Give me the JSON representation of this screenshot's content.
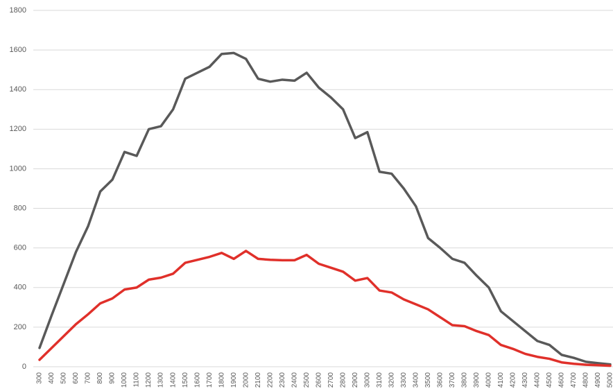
{
  "chart_data": {
    "type": "line",
    "categories": [
      300,
      400,
      500,
      600,
      700,
      800,
      900,
      1000,
      1100,
      1200,
      1300,
      1400,
      1500,
      1600,
      1700,
      1800,
      1900,
      2000,
      2100,
      2200,
      2300,
      2400,
      2500,
      2600,
      2700,
      2800,
      2900,
      3000,
      3100,
      3200,
      3300,
      3400,
      3500,
      3600,
      3700,
      3800,
      3900,
      4000,
      4100,
      4200,
      4300,
      4400,
      4500,
      4600,
      4700,
      4800,
      4900,
      5000
    ],
    "series": [
      {
        "color": "#595959",
        "values": [
          95,
          260,
          420,
          580,
          710,
          885,
          945,
          1085,
          1065,
          1200,
          1215,
          1300,
          1455,
          1485,
          1515,
          1580,
          1585,
          1555,
          1455,
          1440,
          1450,
          1445,
          1485,
          1410,
          1360,
          1300,
          1155,
          1185,
          985,
          975,
          900,
          810,
          650,
          600,
          545,
          525,
          460,
          400,
          280,
          230,
          180,
          130,
          110,
          60,
          45,
          25,
          18,
          12
        ]
      },
      {
        "color": "#e0302a",
        "values": [
          35,
          95,
          155,
          215,
          265,
          320,
          345,
          390,
          400,
          440,
          450,
          470,
          525,
          540,
          555,
          575,
          545,
          585,
          545,
          540,
          538,
          538,
          565,
          520,
          500,
          480,
          435,
          448,
          385,
          375,
          340,
          315,
          290,
          250,
          210,
          205,
          180,
          160,
          110,
          90,
          65,
          50,
          40,
          22,
          15,
          10,
          8,
          5
        ]
      }
    ],
    "ylim": [
      0,
      1800
    ],
    "yticks": [
      0,
      200,
      400,
      600,
      800,
      1000,
      1200,
      1400,
      1600,
      1800
    ],
    "grid": true
  }
}
